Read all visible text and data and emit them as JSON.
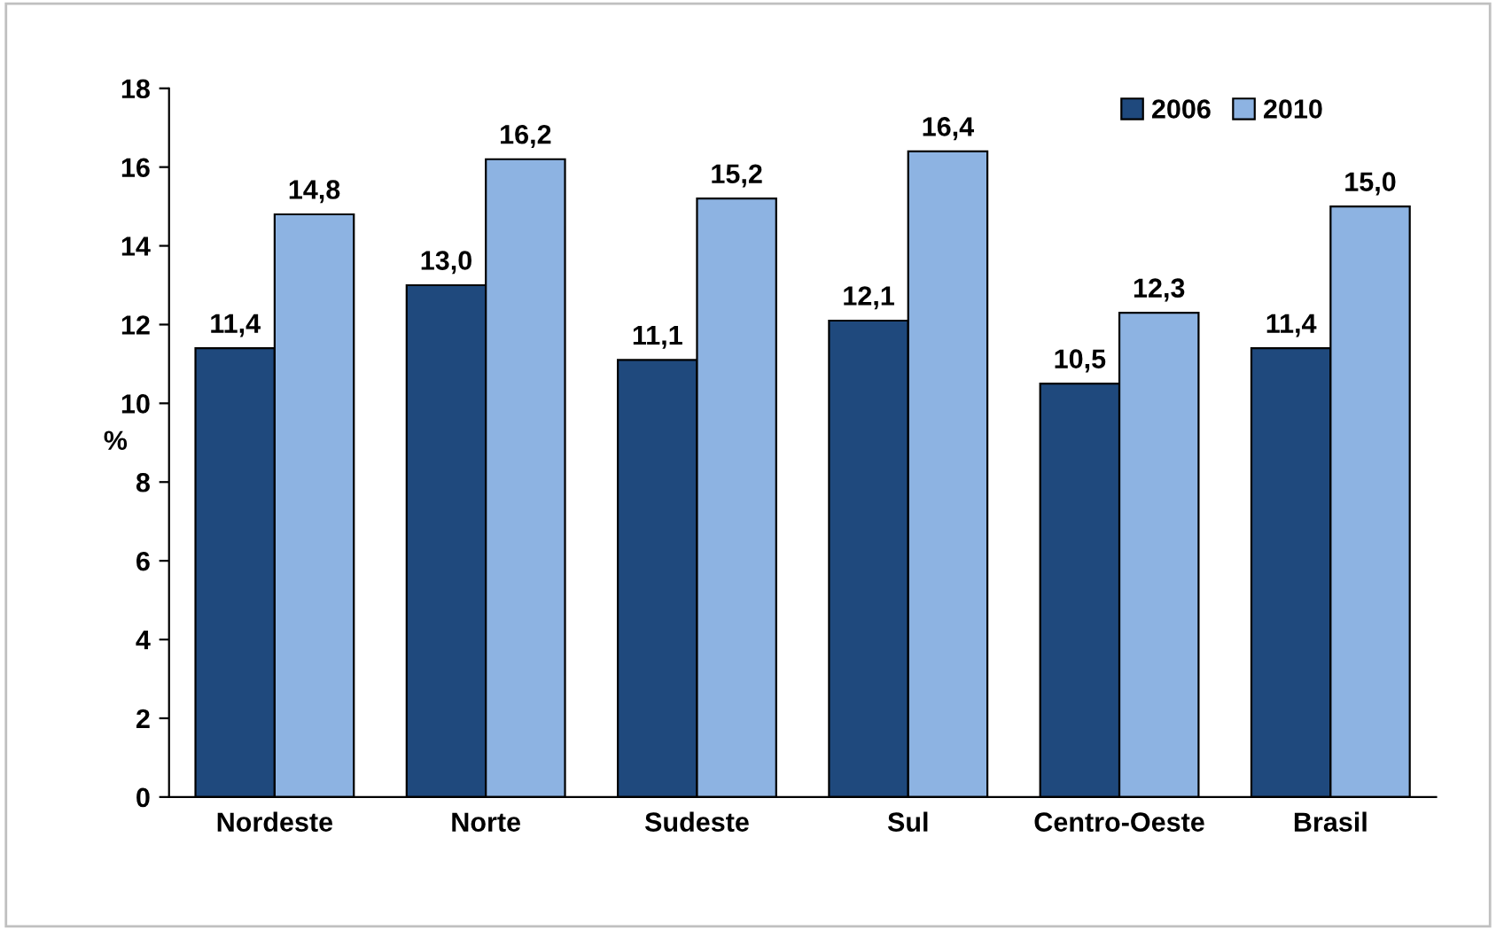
{
  "chart_data": {
    "type": "bar",
    "ylabel": "%",
    "categories": [
      "Nordeste",
      "Norte",
      "Sudeste",
      "Sul",
      "Centro-Oeste",
      "Brasil"
    ],
    "series": [
      {
        "name": "2006",
        "color": "#1f497d",
        "values": [
          11.4,
          13.0,
          11.1,
          12.1,
          10.5,
          11.4
        ],
        "value_labels": [
          "11,4",
          "13,0",
          "11,1",
          "12,1",
          "10,5",
          "11,4"
        ]
      },
      {
        "name": "2010",
        "color": "#8db3e2",
        "values": [
          14.8,
          16.2,
          15.2,
          16.4,
          12.3,
          15.0
        ],
        "value_labels": [
          "14,8",
          "16,2",
          "15,2",
          "16,4",
          "12,3",
          "15,0"
        ]
      }
    ],
    "ylim": [
      0,
      18
    ],
    "yticks": [
      0,
      2,
      4,
      6,
      8,
      10,
      12,
      14,
      16,
      18
    ],
    "legend": "top right",
    "grid": false
  }
}
